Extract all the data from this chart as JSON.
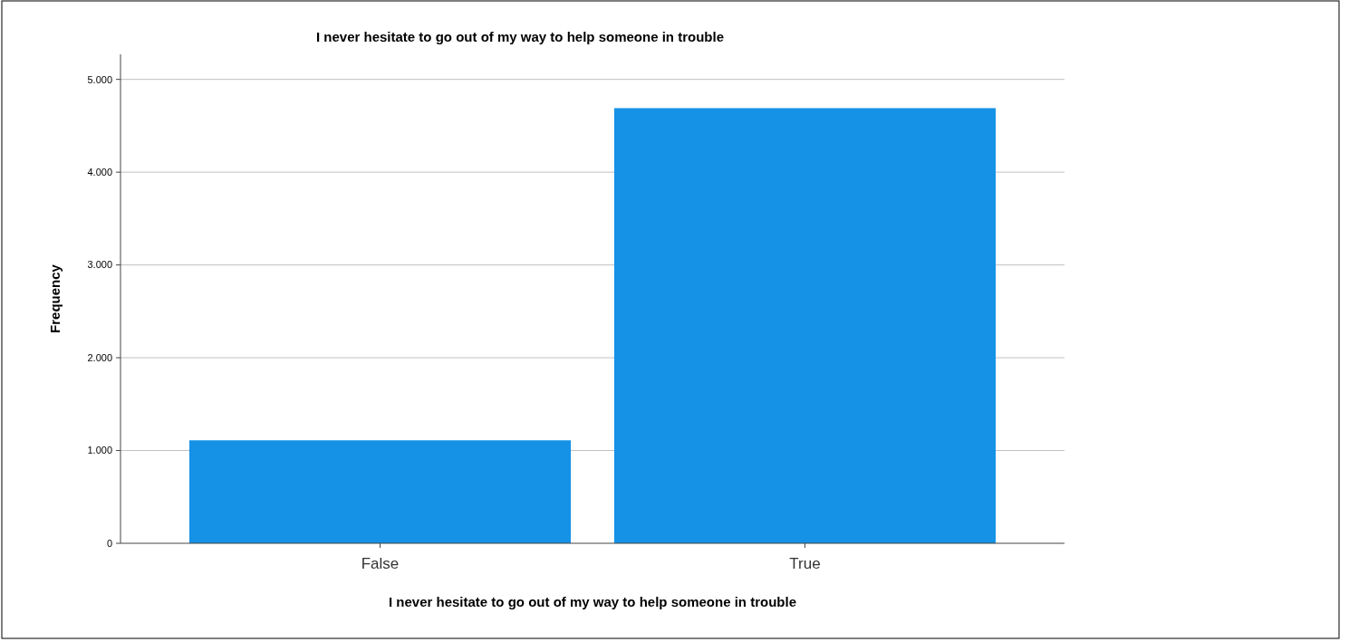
{
  "chart_data": {
    "type": "bar",
    "title": "I never hesitate to go out of my way to help someone in trouble",
    "xlabel": "I never hesitate to go out of my way to help someone in trouble",
    "ylabel": "Frequency",
    "categories": [
      "False",
      "True"
    ],
    "values": [
      1110,
      4690
    ],
    "color": "#1592e6",
    "ylim": [
      0,
      5270
    ],
    "yticks": [
      {
        "value": 0,
        "label": "0"
      },
      {
        "value": 1000,
        "label": "1.000"
      },
      {
        "value": 2000,
        "label": "2.000"
      },
      {
        "value": 3000,
        "label": "3.000"
      },
      {
        "value": 4000,
        "label": "4.000"
      },
      {
        "value": 5000,
        "label": "5.000"
      }
    ],
    "grid": "y"
  }
}
